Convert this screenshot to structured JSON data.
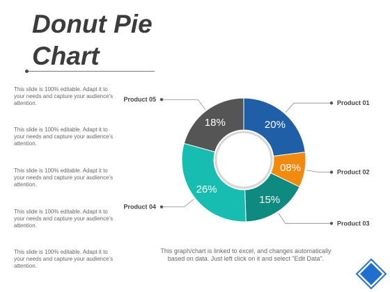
{
  "slide": {
    "title_line1": "Donut Pie",
    "title_line2": "Chart",
    "descriptions": [
      "This slide is 100% editable. Adapt it to your needs and capture your audience's attention.",
      "This slide is 100% editable. Adapt it to your needs and capture your audience's attention.",
      "This slide is 100% editable. Adapt it to your needs and capture your audience's attention.",
      "This slide is 100% editable. Adapt it to your needs and capture your audience's attention.",
      "This slide is 100% editable. Adapt it to your needs and capture your audience's attention."
    ],
    "footer_note": "This graph/chart is linked to excel, and changes automatically based on data. Just left click on it and select \"Edit Data\"."
  },
  "chart_data": {
    "type": "pie",
    "title": "",
    "donut": true,
    "legend": "callout-labels",
    "slices": [
      {
        "name": "Product 01",
        "value": 20,
        "label": "20%",
        "color": "#1f5fa8"
      },
      {
        "name": "Product 02",
        "value": 8,
        "label": "08%",
        "color": "#f28a10"
      },
      {
        "name": "Product 03",
        "value": 15,
        "label": "15%",
        "color": "#0f8a80"
      },
      {
        "name": "Product 04",
        "value": 26,
        "label": "26%",
        "color": "#17bdb0"
      },
      {
        "name": "Product 05",
        "value": 18,
        "label": "18%",
        "color": "#555555"
      }
    ]
  },
  "colors": {
    "corner_accent": "#8fb3e8",
    "badge": "#1f6fd1"
  }
}
